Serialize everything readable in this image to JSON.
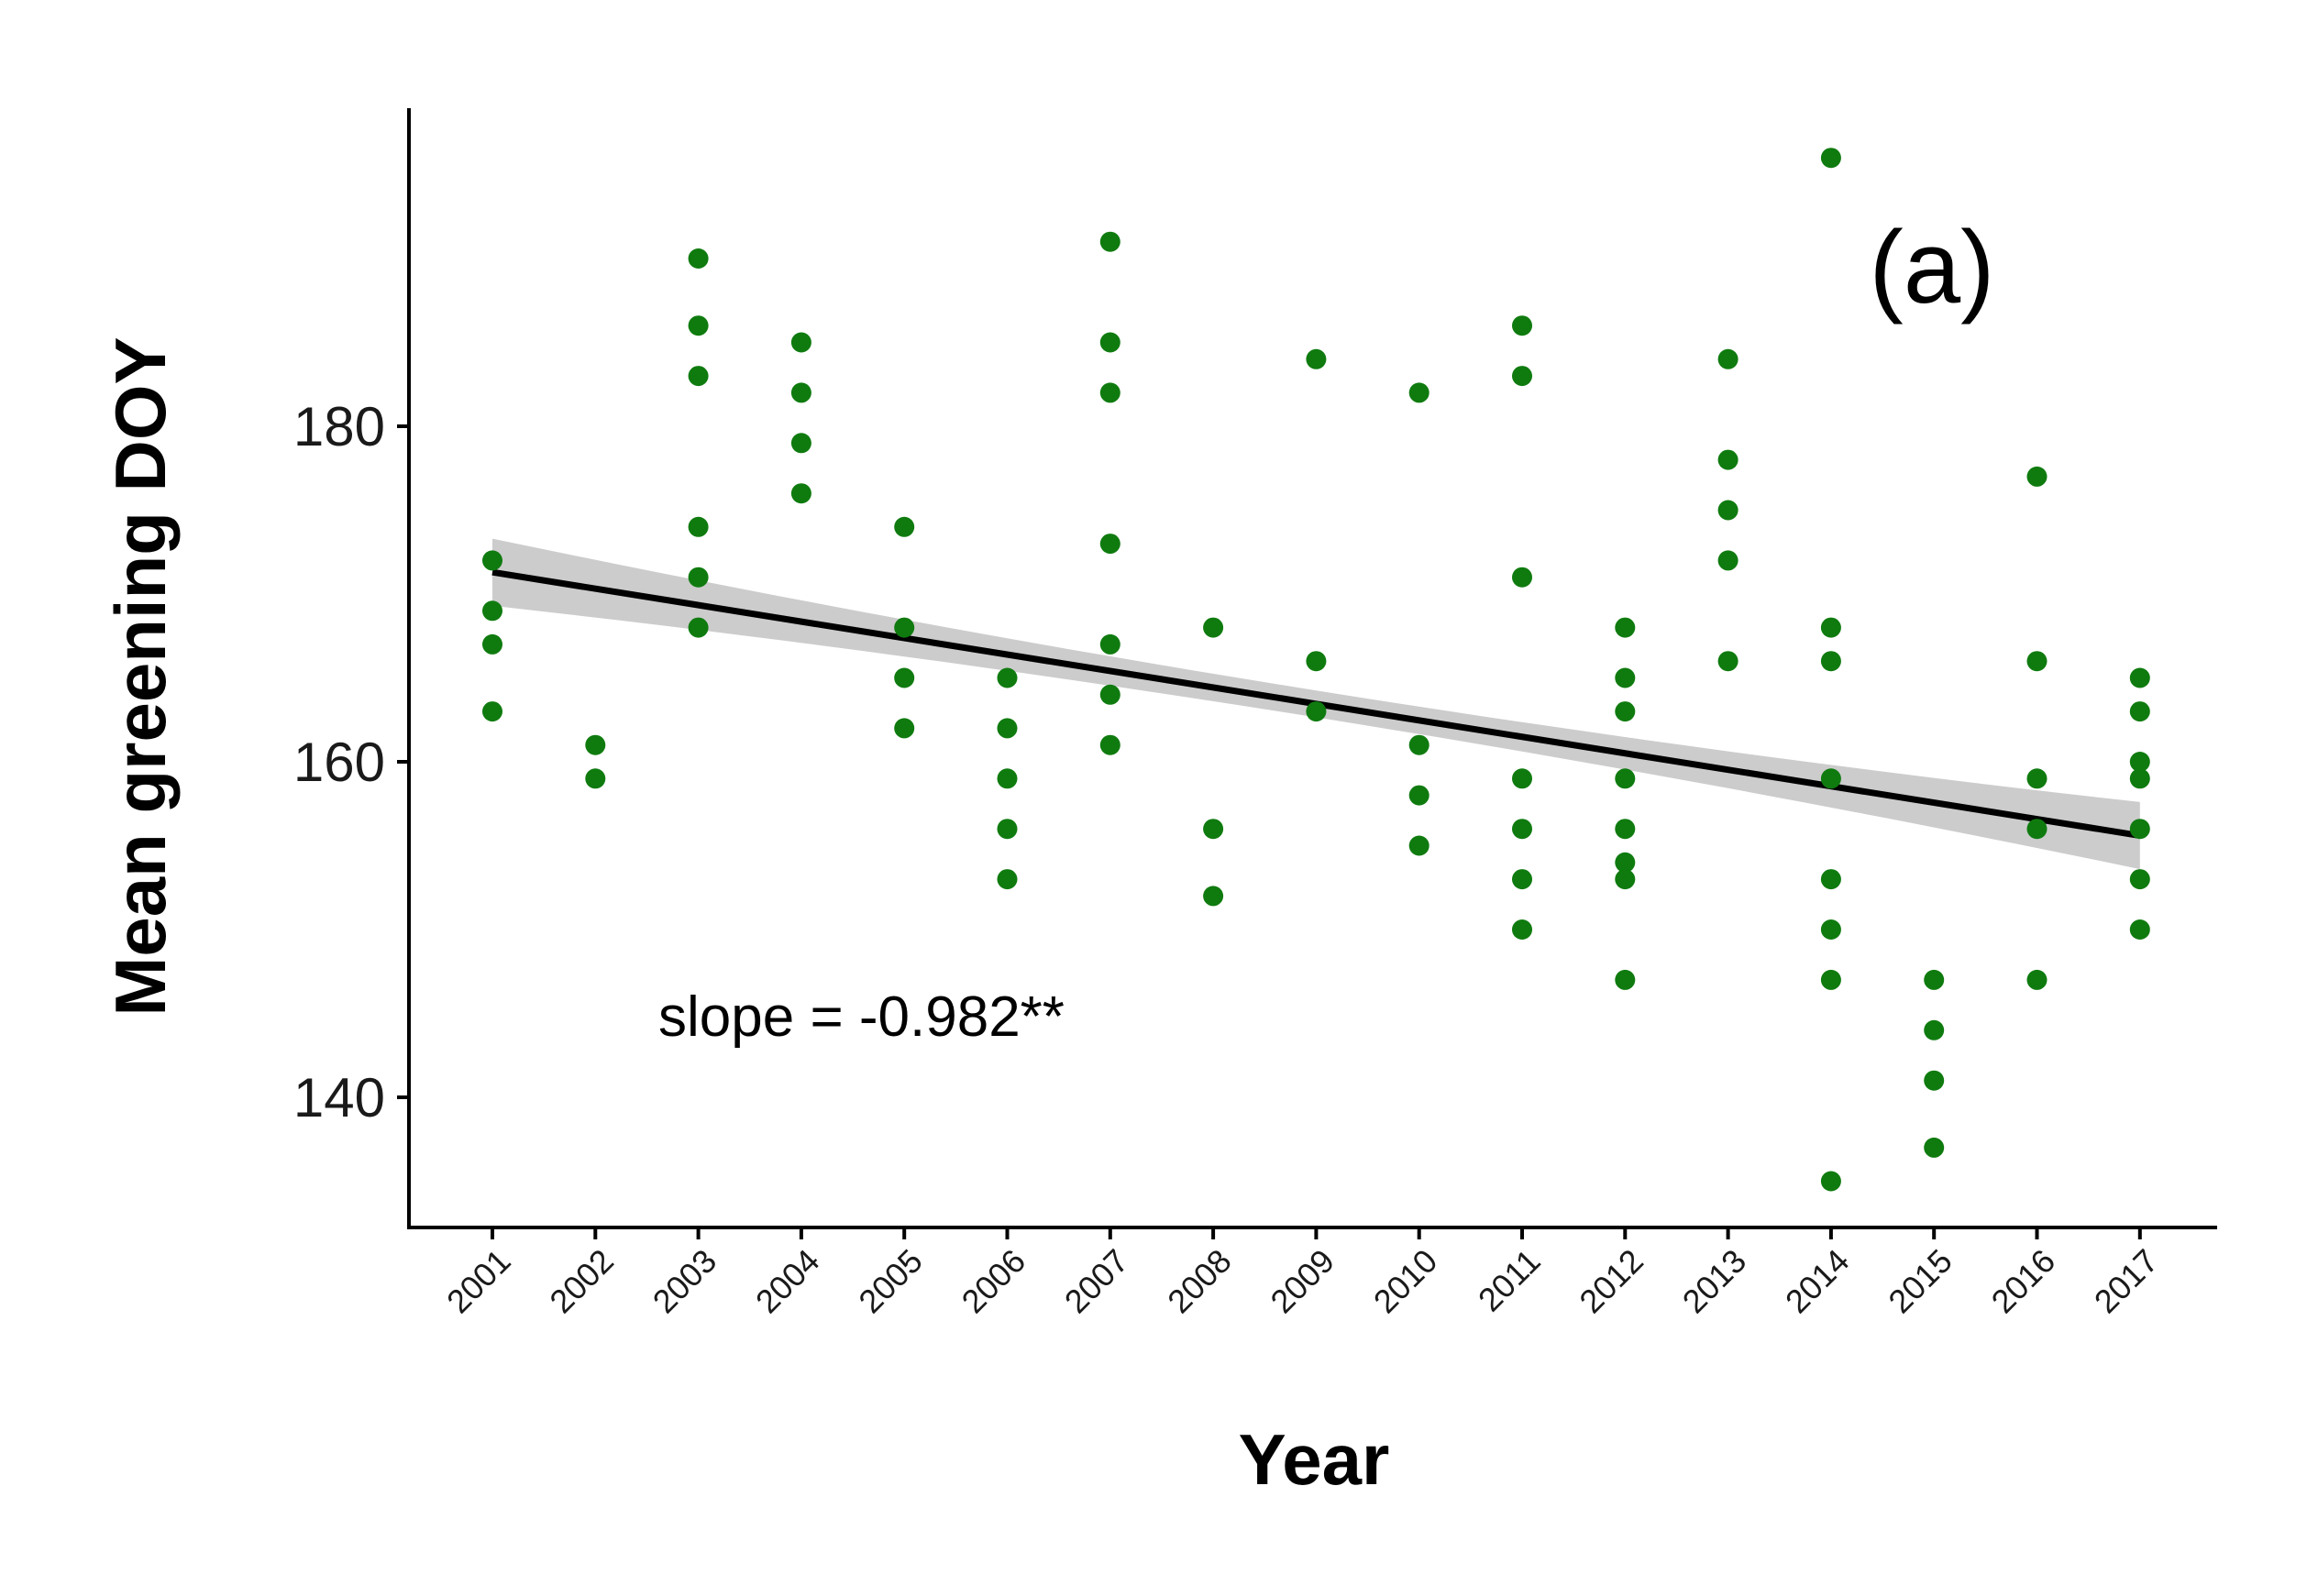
{
  "chart_data": {
    "type": "scatter",
    "xlabel": "Year",
    "ylabel": "Mean greening DOY",
    "panel_label": "(a)",
    "annotation": "slope = -0.982**",
    "x_categories": [
      "2001",
      "2002",
      "2003",
      "2004",
      "2005",
      "2006",
      "2007",
      "2008",
      "2009",
      "2010",
      "2011",
      "2012",
      "2013",
      "2014",
      "2015",
      "2016",
      "2017"
    ],
    "yticks": [
      140,
      160,
      180
    ],
    "ytick_labels": [
      "140",
      "160",
      "180"
    ],
    "ylim": [
      132,
      199
    ],
    "grid": false,
    "point_color": "#0f7b0f",
    "points": [
      {
        "year": "2001",
        "values": [
          172,
          169,
          167,
          163
        ]
      },
      {
        "year": "2002",
        "values": [
          161,
          159
        ]
      },
      {
        "year": "2003",
        "values": [
          190,
          186,
          183,
          174,
          171,
          168
        ]
      },
      {
        "year": "2004",
        "values": [
          185,
          182,
          179,
          176
        ]
      },
      {
        "year": "2005",
        "values": [
          174,
          168,
          165,
          162
        ]
      },
      {
        "year": "2006",
        "values": [
          165,
          162,
          159,
          156,
          153
        ]
      },
      {
        "year": "2007",
        "values": [
          191,
          185,
          182,
          173,
          167,
          164,
          161
        ]
      },
      {
        "year": "2008",
        "values": [
          168,
          156,
          152
        ]
      },
      {
        "year": "2009",
        "values": [
          184,
          166,
          163
        ]
      },
      {
        "year": "2010",
        "values": [
          182,
          161,
          158,
          155
        ]
      },
      {
        "year": "2011",
        "values": [
          186,
          183,
          171,
          159,
          156,
          153,
          150
        ]
      },
      {
        "year": "2012",
        "values": [
          168,
          165,
          163,
          159,
          156,
          154,
          153,
          147
        ]
      },
      {
        "year": "2013",
        "values": [
          184,
          178,
          175,
          172,
          166
        ]
      },
      {
        "year": "2014",
        "values": [
          196,
          168,
          166,
          159,
          153,
          150,
          147,
          135
        ]
      },
      {
        "year": "2015",
        "values": [
          147,
          144,
          141,
          137
        ]
      },
      {
        "year": "2016",
        "values": [
          177,
          166,
          159,
          156,
          147
        ]
      },
      {
        "year": "2017",
        "values": [
          165,
          163,
          160,
          159,
          156,
          153,
          150
        ]
      }
    ],
    "trend": {
      "color": "#000000",
      "band_color": "#cccccc",
      "start": {
        "year": "2001",
        "value": 171.3
      },
      "end": {
        "year": "2017",
        "value": 155.6
      },
      "band_half_width_start": 2.0,
      "band_half_width_mid": 0.8,
      "band_half_width_end": 2.0
    }
  }
}
